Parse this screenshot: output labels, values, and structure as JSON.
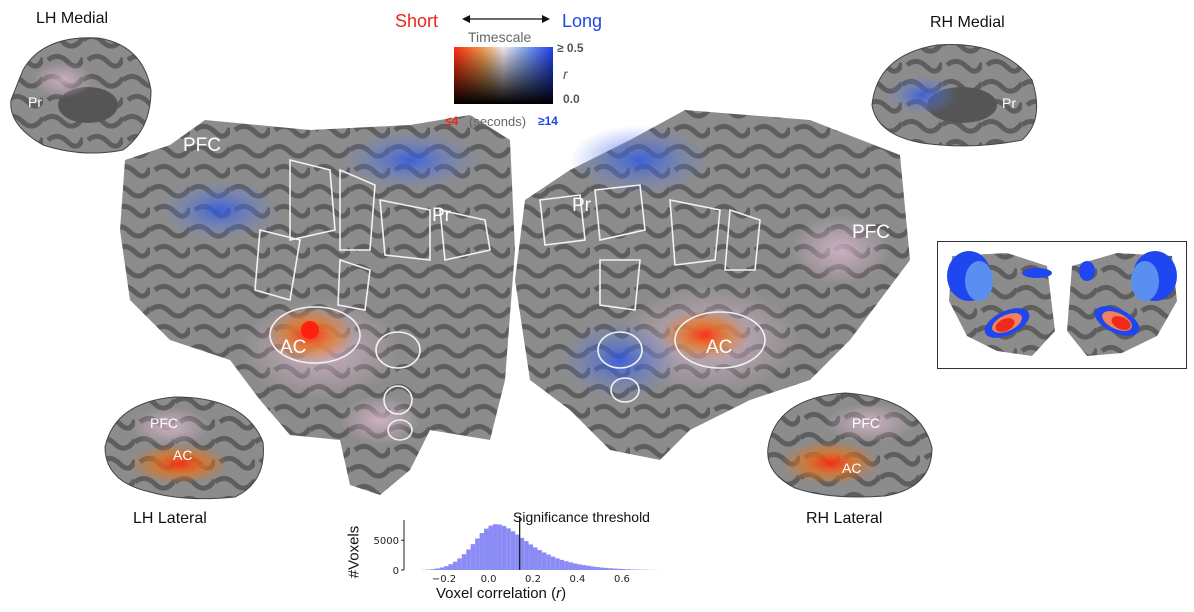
{
  "views": {
    "lh_medial": "LH Medial",
    "rh_medial": "RH Medial",
    "lh_lateral": "LH Lateral",
    "rh_lateral": "RH Lateral"
  },
  "regions": {
    "pfc": "PFC",
    "pr": "Pr",
    "ac": "AC"
  },
  "legend": {
    "short": "Short",
    "long": "Long",
    "timescale": "Timescale",
    "r_max": "≥ 0.5",
    "r_label": "r",
    "r_min": "0.0",
    "short_value": "≤4",
    "seconds": "(seconds)",
    "long_value": "≥14",
    "short_color": "#e8261a",
    "long_color": "#1f45e6"
  },
  "chart_data": {
    "type": "histogram",
    "xlabel_prefix": "Voxel correlation (",
    "xlabel_var": "r",
    "xlabel_suffix": ")",
    "ylabel": "#Voxels",
    "xticks": [
      "−0.2",
      "0.0",
      "0.2",
      "0.4",
      "0.6"
    ],
    "xtick_values": [
      -0.2,
      0.0,
      0.2,
      0.4,
      0.6
    ],
    "yticks": [
      "0",
      "5000"
    ],
    "ytick_values": [
      0,
      5000
    ],
    "xlim": [
      -0.38,
      0.78
    ],
    "ylim": [
      0,
      8400
    ],
    "threshold": 0.14,
    "threshold_label": "Significance threshold",
    "bin_width": 0.02,
    "bin_start": -0.3,
    "counts": [
      40,
      80,
      150,
      260,
      420,
      650,
      980,
      1400,
      1950,
      2650,
      3450,
      4350,
      5300,
      6200,
      6950,
      7450,
      7700,
      7650,
      7400,
      7000,
      6500,
      5950,
      5400,
      4850,
      4300,
      3800,
      3350,
      2950,
      2600,
      2250,
      1950,
      1700,
      1480,
      1280,
      1100,
      950,
      820,
      700,
      590,
      500,
      420,
      350,
      290,
      240,
      195,
      160,
      125,
      95,
      70,
      50,
      35,
      22,
      14,
      8
    ]
  }
}
